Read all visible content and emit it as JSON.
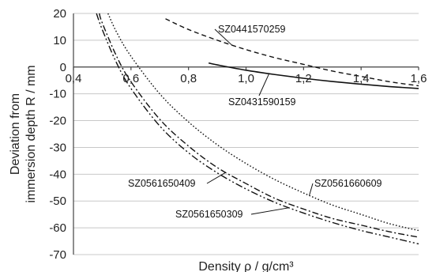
{
  "chart_data": {
    "type": "line",
    "title": "",
    "xlabel": "Density ρ / g/cm³",
    "ylabel": [
      "Deviation from",
      "immersion depth R / mm"
    ],
    "xlim": [
      0.4,
      1.6
    ],
    "ylim": [
      -70,
      20
    ],
    "x_ticks": [
      0.4,
      0.6,
      0.8,
      1.0,
      1.2,
      1.4,
      1.6
    ],
    "x_tick_labels": [
      "0,4",
      "0,6",
      "0,8",
      "1,0",
      "1,2",
      "1,4",
      "1,6"
    ],
    "y_ticks": [
      20,
      10,
      0,
      -10,
      -20,
      -30,
      -40,
      -50,
      -60,
      -70
    ],
    "y_tick_labels": [
      "20",
      "10",
      "0",
      "-10",
      "-20",
      "-30",
      "-40",
      "-50",
      "-60",
      "-70"
    ],
    "grid": "horizontal",
    "legend": "none",
    "series": [
      {
        "name": "SZ0441570259",
        "dash": "dashed",
        "x": [
          0.72,
          0.8,
          0.9,
          1.0,
          1.1,
          1.2,
          1.3,
          1.4,
          1.5,
          1.6
        ],
        "y": [
          18,
          14,
          10,
          6.5,
          3.5,
          1,
          -1.5,
          -3.5,
          -5.5,
          -7
        ]
      },
      {
        "name": "SZ0431590159",
        "dash": "solid",
        "x": [
          0.87,
          0.9,
          1.0,
          1.1,
          1.2,
          1.3,
          1.4,
          1.5,
          1.6
        ],
        "y": [
          1.5,
          0.8,
          -1.2,
          -2.8,
          -4.2,
          -5.4,
          -6.4,
          -7.3,
          -8
        ]
      },
      {
        "name": "SZ0561660609",
        "dash": "dotted",
        "x": [
          0.52,
          0.55,
          0.6,
          0.7,
          0.8,
          0.9,
          1.0,
          1.1,
          1.2,
          1.3,
          1.4,
          1.5,
          1.6
        ],
        "y": [
          20,
          13,
          4,
          -10,
          -20.5,
          -29,
          -36,
          -42,
          -47,
          -51.5,
          -55,
          -58.5,
          -61
        ]
      },
      {
        "name": "SZ0561650409",
        "dash": "dash-dot",
        "x": [
          0.49,
          0.5,
          0.55,
          0.6,
          0.7,
          0.8,
          0.9,
          1.0,
          1.1,
          1.2,
          1.3,
          1.4,
          1.5,
          1.6
        ],
        "y": [
          20,
          16.5,
          4,
          -5.5,
          -19.5,
          -29.5,
          -37.5,
          -43.5,
          -49,
          -53,
          -56.5,
          -59,
          -61.5,
          -63.5
        ]
      },
      {
        "name": "SZ0561650309",
        "dash": "dash-dot-dot",
        "x": [
          0.48,
          0.5,
          0.55,
          0.6,
          0.7,
          0.8,
          0.9,
          1.0,
          1.1,
          1.2,
          1.3,
          1.4,
          1.5,
          1.6
        ],
        "y": [
          20,
          14,
          1.5,
          -8,
          -22,
          -32,
          -39.5,
          -45.5,
          -50.5,
          -54.5,
          -58,
          -61,
          -63.5,
          -66
        ]
      }
    ],
    "annotations": [
      {
        "text": "SZ0441570259",
        "series": "SZ0441570259"
      },
      {
        "text": "SZ0431590159",
        "series": "SZ0431590159"
      },
      {
        "text": "SZ0561660609",
        "series": "SZ0561660609"
      },
      {
        "text": "SZ0561650409",
        "series": "SZ0561650409"
      },
      {
        "text": "SZ0561650309",
        "series": "SZ0561650309"
      }
    ]
  }
}
